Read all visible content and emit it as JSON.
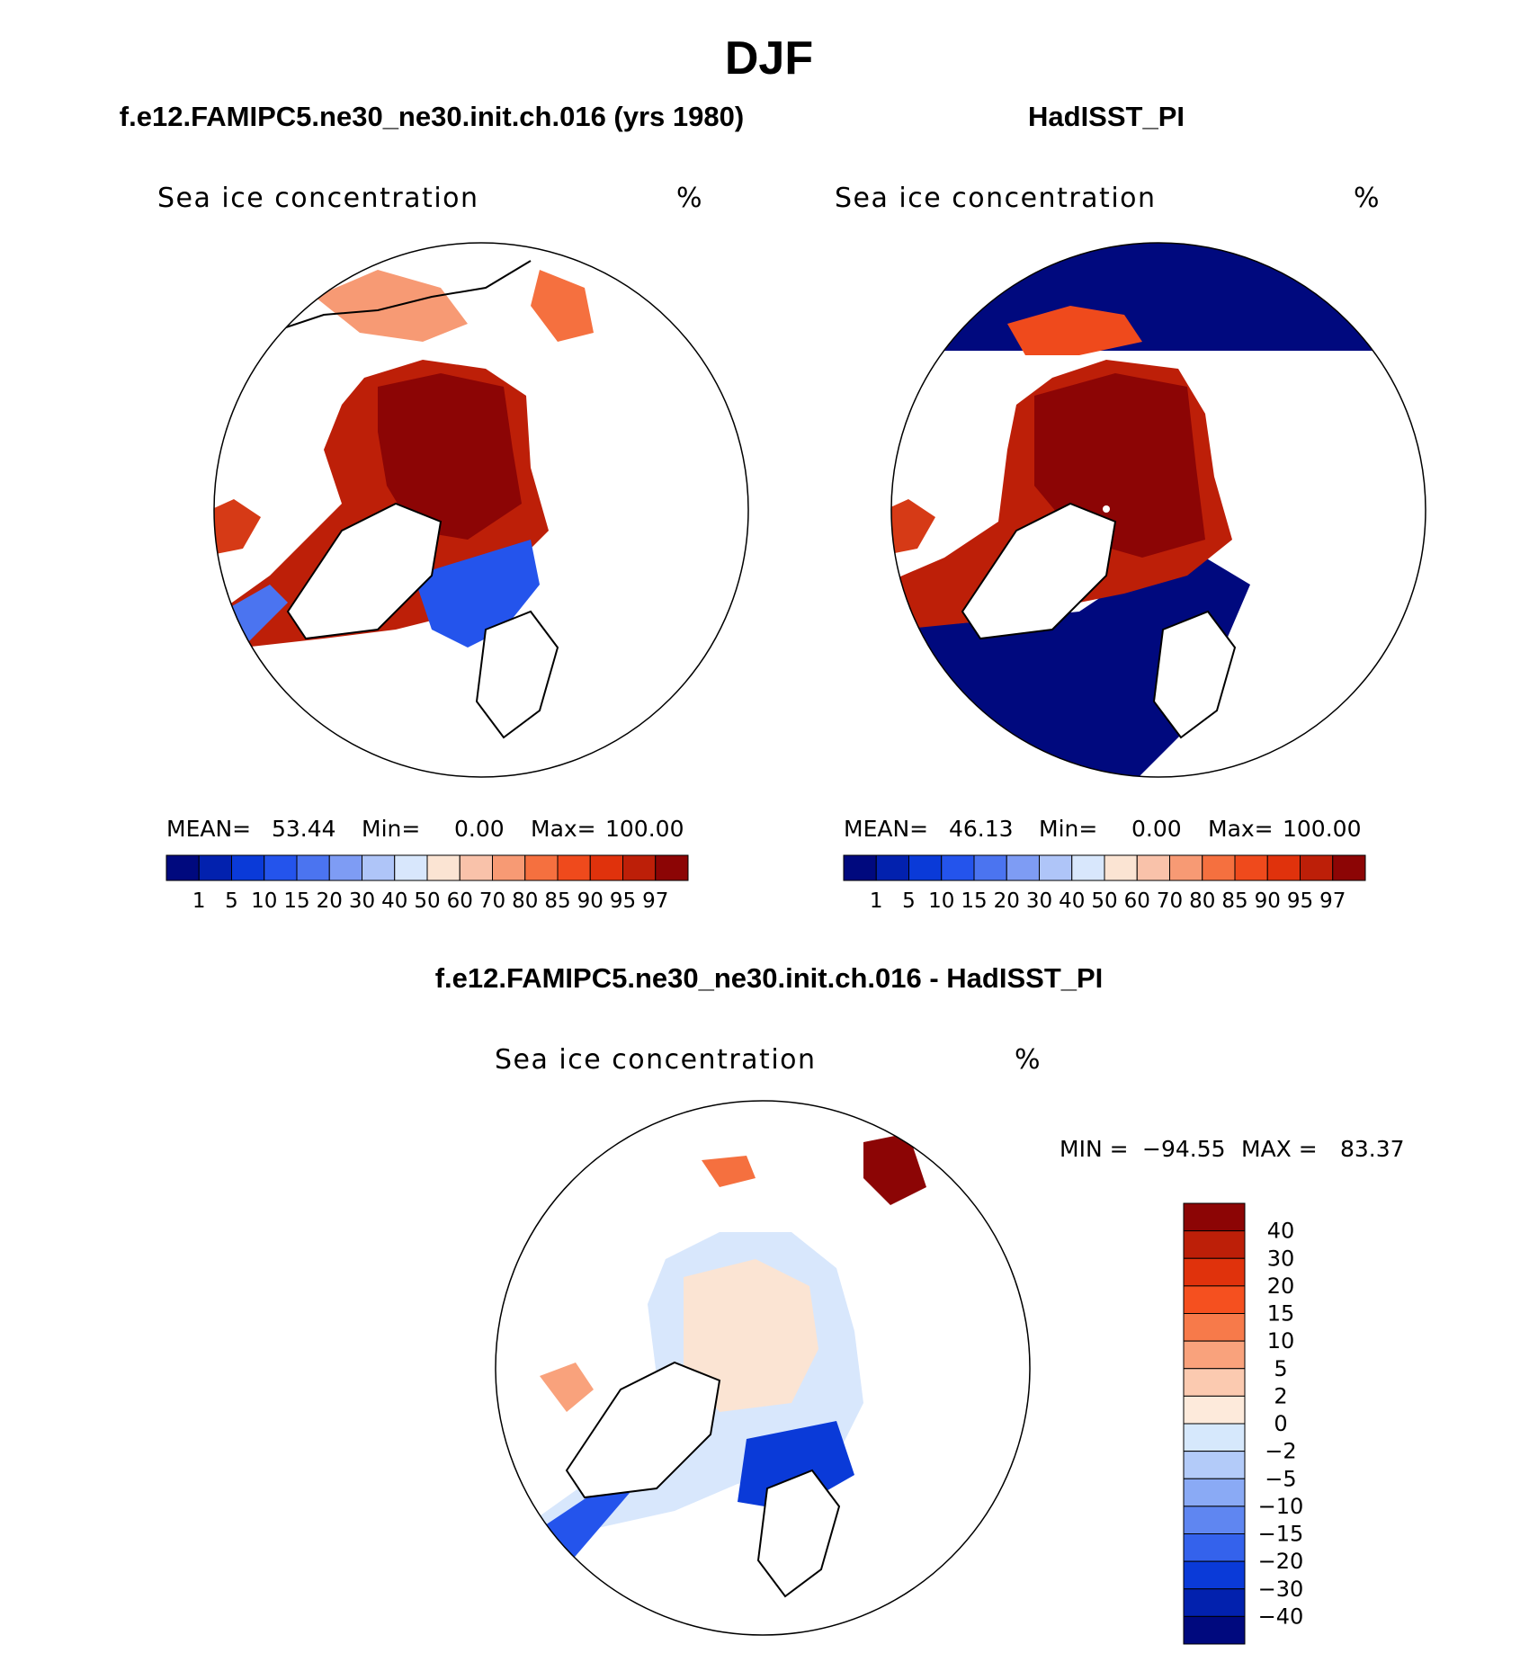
{
  "page_title": "DJF",
  "chart_data": [
    {
      "type": "heatmap",
      "id": "model",
      "title": "f.e12.FAMIPC5.ne30_ne30.init.ch.016 (yrs 1980)",
      "variable": "Sea ice concentration",
      "units": "%",
      "projection": "north polar stereographic",
      "stats": {
        "mean_label": "MEAN=",
        "mean": "53.44",
        "min_label": "Min=",
        "min": "0.00",
        "max_label": "Max=",
        "max": "100.00"
      },
      "colorbar_ticks": [
        "1",
        "5",
        "10",
        "15",
        "20",
        "30",
        "40",
        "50",
        "60",
        "70",
        "80",
        "85",
        "90",
        "95",
        "97"
      ],
      "colorbar_colors": [
        "#00097e",
        "#0221ae",
        "#0a3ad8",
        "#2454ec",
        "#4b74f0",
        "#7e9cf4",
        "#afc5f8",
        "#d8e7fc",
        "#fbe4d3",
        "#f9c2aa",
        "#f79a74",
        "#f5703f",
        "#ef4a1c",
        "#e0320c",
        "#bd1f08",
        "#8c0505"
      ]
    },
    {
      "type": "heatmap",
      "id": "obs",
      "title": "HadISST_PI",
      "variable": "Sea ice concentration",
      "units": "%",
      "projection": "north polar stereographic",
      "stats": {
        "mean_label": "MEAN=",
        "mean": "46.13",
        "min_label": "Min=",
        "min": "0.00",
        "max_label": "Max=",
        "max": "100.00"
      },
      "colorbar_ticks": [
        "1",
        "5",
        "10",
        "15",
        "20",
        "30",
        "40",
        "50",
        "60",
        "70",
        "80",
        "85",
        "90",
        "95",
        "97"
      ],
      "colorbar_colors": [
        "#00097e",
        "#0221ae",
        "#0a3ad8",
        "#2454ec",
        "#4b74f0",
        "#7e9cf4",
        "#afc5f8",
        "#d8e7fc",
        "#fbe4d3",
        "#f9c2aa",
        "#f79a74",
        "#f5703f",
        "#ef4a1c",
        "#e0320c",
        "#bd1f08",
        "#8c0505"
      ]
    },
    {
      "type": "heatmap",
      "id": "diff",
      "title": "f.e12.FAMIPC5.ne30_ne30.init.ch.016 - HadISST_PI",
      "variable": "Sea ice concentration",
      "units": "%",
      "projection": "north polar stereographic",
      "stats": {
        "min_label": "MIN = ",
        "min": "−94.55",
        "max_label": "MAX = ",
        "max": "83.37"
      },
      "colorbar_ticks": [
        "40",
        "30",
        "20",
        "15",
        "10",
        "5",
        "2",
        "0",
        "−2",
        "−5",
        "−10",
        "−15",
        "−20",
        "−30",
        "−40"
      ],
      "colorbar_colors": [
        "#8c0505",
        "#bd1f08",
        "#e0320c",
        "#f5501f",
        "#f77a4a",
        "#f9a27c",
        "#fbcab0",
        "#fdeadb",
        "#d6e8fc",
        "#b3cbf9",
        "#8aaaf5",
        "#5f86f1",
        "#3462ec",
        "#0a3ad8",
        "#0221ae",
        "#00097e"
      ]
    }
  ]
}
